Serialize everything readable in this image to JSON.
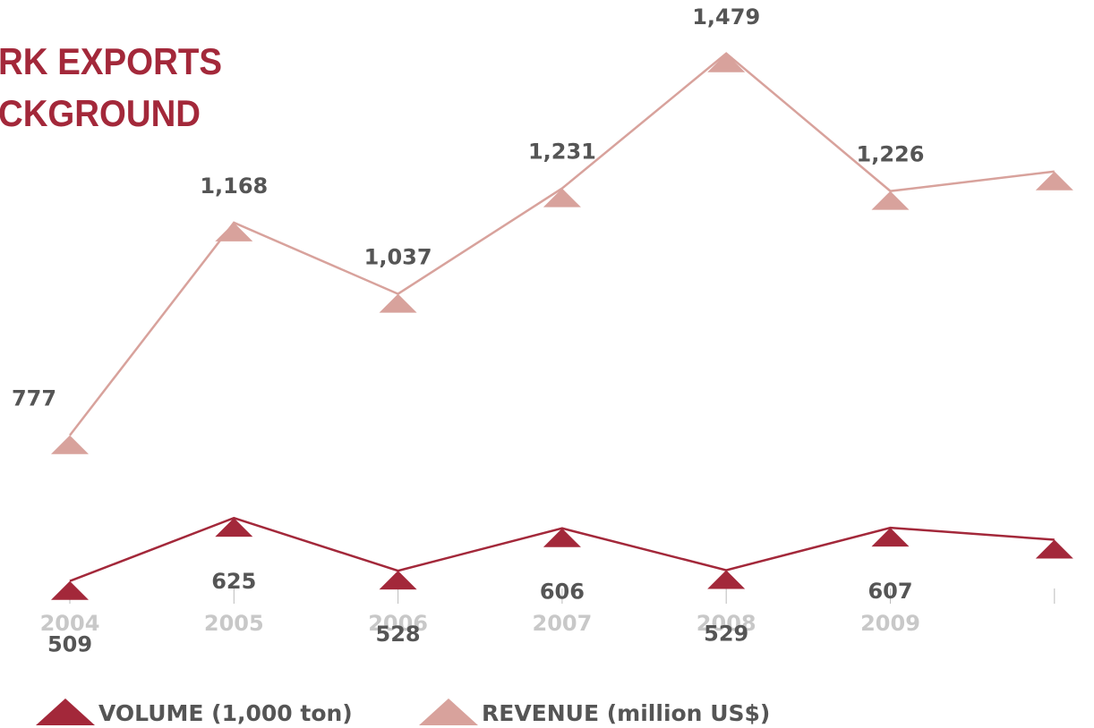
{
  "chart_data": {
    "type": "line",
    "title": [
      "RK EXPORTS",
      "CKGROUND"
    ],
    "categories": [
      "2004",
      "2005",
      "2006",
      "2007",
      "2008",
      "2009",
      null
    ],
    "ylim": [
      400,
      1500
    ],
    "series": [
      {
        "name": "VOLUME (1,000 ton)",
        "color": "#a3283a",
        "values": [
          509,
          625,
          528,
          606,
          529,
          607,
          585
        ],
        "value_labels": [
          "509",
          "625",
          "528",
          "606",
          "529",
          "607",
          null
        ]
      },
      {
        "name": "REVENUE (million US$)",
        "color": "#d8a29c",
        "values": [
          777,
          1168,
          1037,
          1231,
          1479,
          1226,
          1262
        ],
        "value_labels": [
          "777",
          "1,168",
          "1,037",
          "1,231",
          "1,479",
          "1,226",
          null
        ]
      }
    ]
  }
}
